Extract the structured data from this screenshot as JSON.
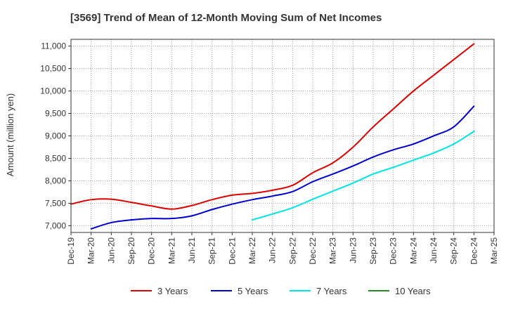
{
  "chart_data": {
    "type": "line",
    "title": "[3569]  Trend of Mean of 12-Month Moving Sum of Net Incomes",
    "xlabel": "",
    "ylabel": "Amount (million yen)",
    "ylim": [
      6850,
      11150
    ],
    "yticks": [
      7000,
      7500,
      8000,
      8500,
      9000,
      9500,
      10000,
      10500,
      11000
    ],
    "ytick_labels": [
      "7,000",
      "7,500",
      "8,000",
      "8,500",
      "9,000",
      "9,500",
      "10,000",
      "10,500",
      "11,000"
    ],
    "x_tick_labels": [
      "Dec-19",
      "Mar-20",
      "Jun-20",
      "Sep-20",
      "Dec-20",
      "Mar-21",
      "Jun-21",
      "Sep-21",
      "Dec-21",
      "Mar-22",
      "Jun-22",
      "Sep-22",
      "Dec-22",
      "Mar-23",
      "Jun-23",
      "Sep-23",
      "Dec-23",
      "Mar-24",
      "Jun-24",
      "Sep-24",
      "Dec-24",
      "Mar-25"
    ],
    "grid": true,
    "legend_position": "bottom",
    "series": [
      {
        "name": "3 Years",
        "color": "#dd0000",
        "points": [
          [
            "Dec-19",
            7480
          ],
          [
            "Mar-20",
            7580
          ],
          [
            "Jun-20",
            7590
          ],
          [
            "Sep-20",
            7520
          ],
          [
            "Dec-20",
            7440
          ],
          [
            "Mar-21",
            7370
          ],
          [
            "Jun-21",
            7450
          ],
          [
            "Sep-21",
            7580
          ],
          [
            "Dec-21",
            7680
          ],
          [
            "Mar-22",
            7720
          ],
          [
            "Jun-22",
            7790
          ],
          [
            "Sep-22",
            7900
          ],
          [
            "Dec-22",
            8180
          ],
          [
            "Mar-23",
            8400
          ],
          [
            "Jun-23",
            8750
          ],
          [
            "Sep-23",
            9200
          ],
          [
            "Dec-23",
            9600
          ],
          [
            "Mar-24",
            10000
          ],
          [
            "Jun-24",
            10350
          ],
          [
            "Sep-24",
            10700
          ],
          [
            "Dec-24",
            11050
          ]
        ]
      },
      {
        "name": "5 Years",
        "color": "#0000cc",
        "points": [
          [
            "Mar-20",
            6930
          ],
          [
            "Jun-20",
            7070
          ],
          [
            "Sep-20",
            7130
          ],
          [
            "Dec-20",
            7160
          ],
          [
            "Mar-21",
            7160
          ],
          [
            "Jun-21",
            7220
          ],
          [
            "Sep-21",
            7360
          ],
          [
            "Dec-21",
            7480
          ],
          [
            "Mar-22",
            7580
          ],
          [
            "Jun-22",
            7660
          ],
          [
            "Sep-22",
            7760
          ],
          [
            "Dec-22",
            7980
          ],
          [
            "Mar-23",
            8150
          ],
          [
            "Jun-23",
            8330
          ],
          [
            "Sep-23",
            8530
          ],
          [
            "Dec-23",
            8690
          ],
          [
            "Mar-24",
            8820
          ],
          [
            "Jun-24",
            9000
          ],
          [
            "Sep-24",
            9200
          ],
          [
            "Dec-24",
            9660
          ]
        ]
      },
      {
        "name": "7 Years",
        "color": "#00e5e5",
        "points": [
          [
            "Mar-22",
            7130
          ],
          [
            "Jun-22",
            7260
          ],
          [
            "Sep-22",
            7400
          ],
          [
            "Dec-22",
            7590
          ],
          [
            "Mar-23",
            7770
          ],
          [
            "Jun-23",
            7950
          ],
          [
            "Sep-23",
            8150
          ],
          [
            "Dec-23",
            8300
          ],
          [
            "Mar-24",
            8460
          ],
          [
            "Jun-24",
            8620
          ],
          [
            "Sep-24",
            8820
          ],
          [
            "Dec-24",
            9100
          ]
        ]
      },
      {
        "name": "10 Years",
        "color": "#228b22",
        "points": []
      }
    ]
  }
}
